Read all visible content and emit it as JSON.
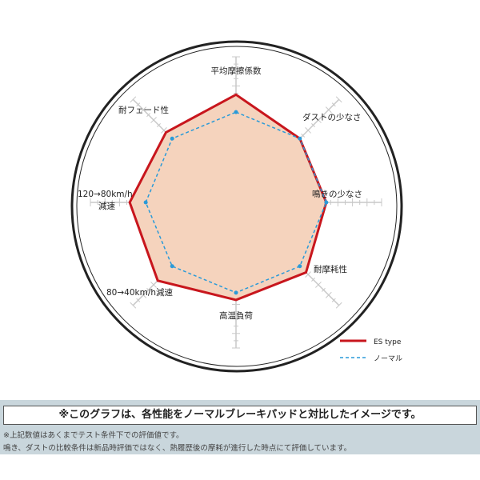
{
  "chart_data": {
    "type": "radar",
    "categories": [
      "平均摩擦係数",
      "ダストの少なさ",
      "鳴きの少なさ",
      "耐摩耗性",
      "高温負荷",
      "80→40km/h減速",
      "120→80km/h\n減速",
      "耐フェード性"
    ],
    "rlim": [
      0,
      10
    ],
    "series": [
      {
        "name": "ES type",
        "values": [
          7.4,
          6.2,
          6.2,
          6.8,
          6.7,
          7.6,
          7.3,
          6.8
        ],
        "color": "#c8161d",
        "fill": "#f5d3bd"
      },
      {
        "name": "ノーマル",
        "values": [
          6.2,
          6.2,
          6.2,
          6.2,
          6.2,
          6.2,
          6.2,
          6.2
        ],
        "color": "#2a9ad8"
      }
    ],
    "legend": "bottom-right",
    "grid": true
  },
  "notes": {
    "main": "※このグラフは、各性能をノーマルブレーキパッドと対比したイメージです。",
    "line1": "※上記数値はあくまでテスト条件下での評価値です。",
    "line2": "鳴き、ダストの比較条件は新品時評価ではなく、熱履歴後の摩耗が進行した時点にて評価しています。"
  }
}
